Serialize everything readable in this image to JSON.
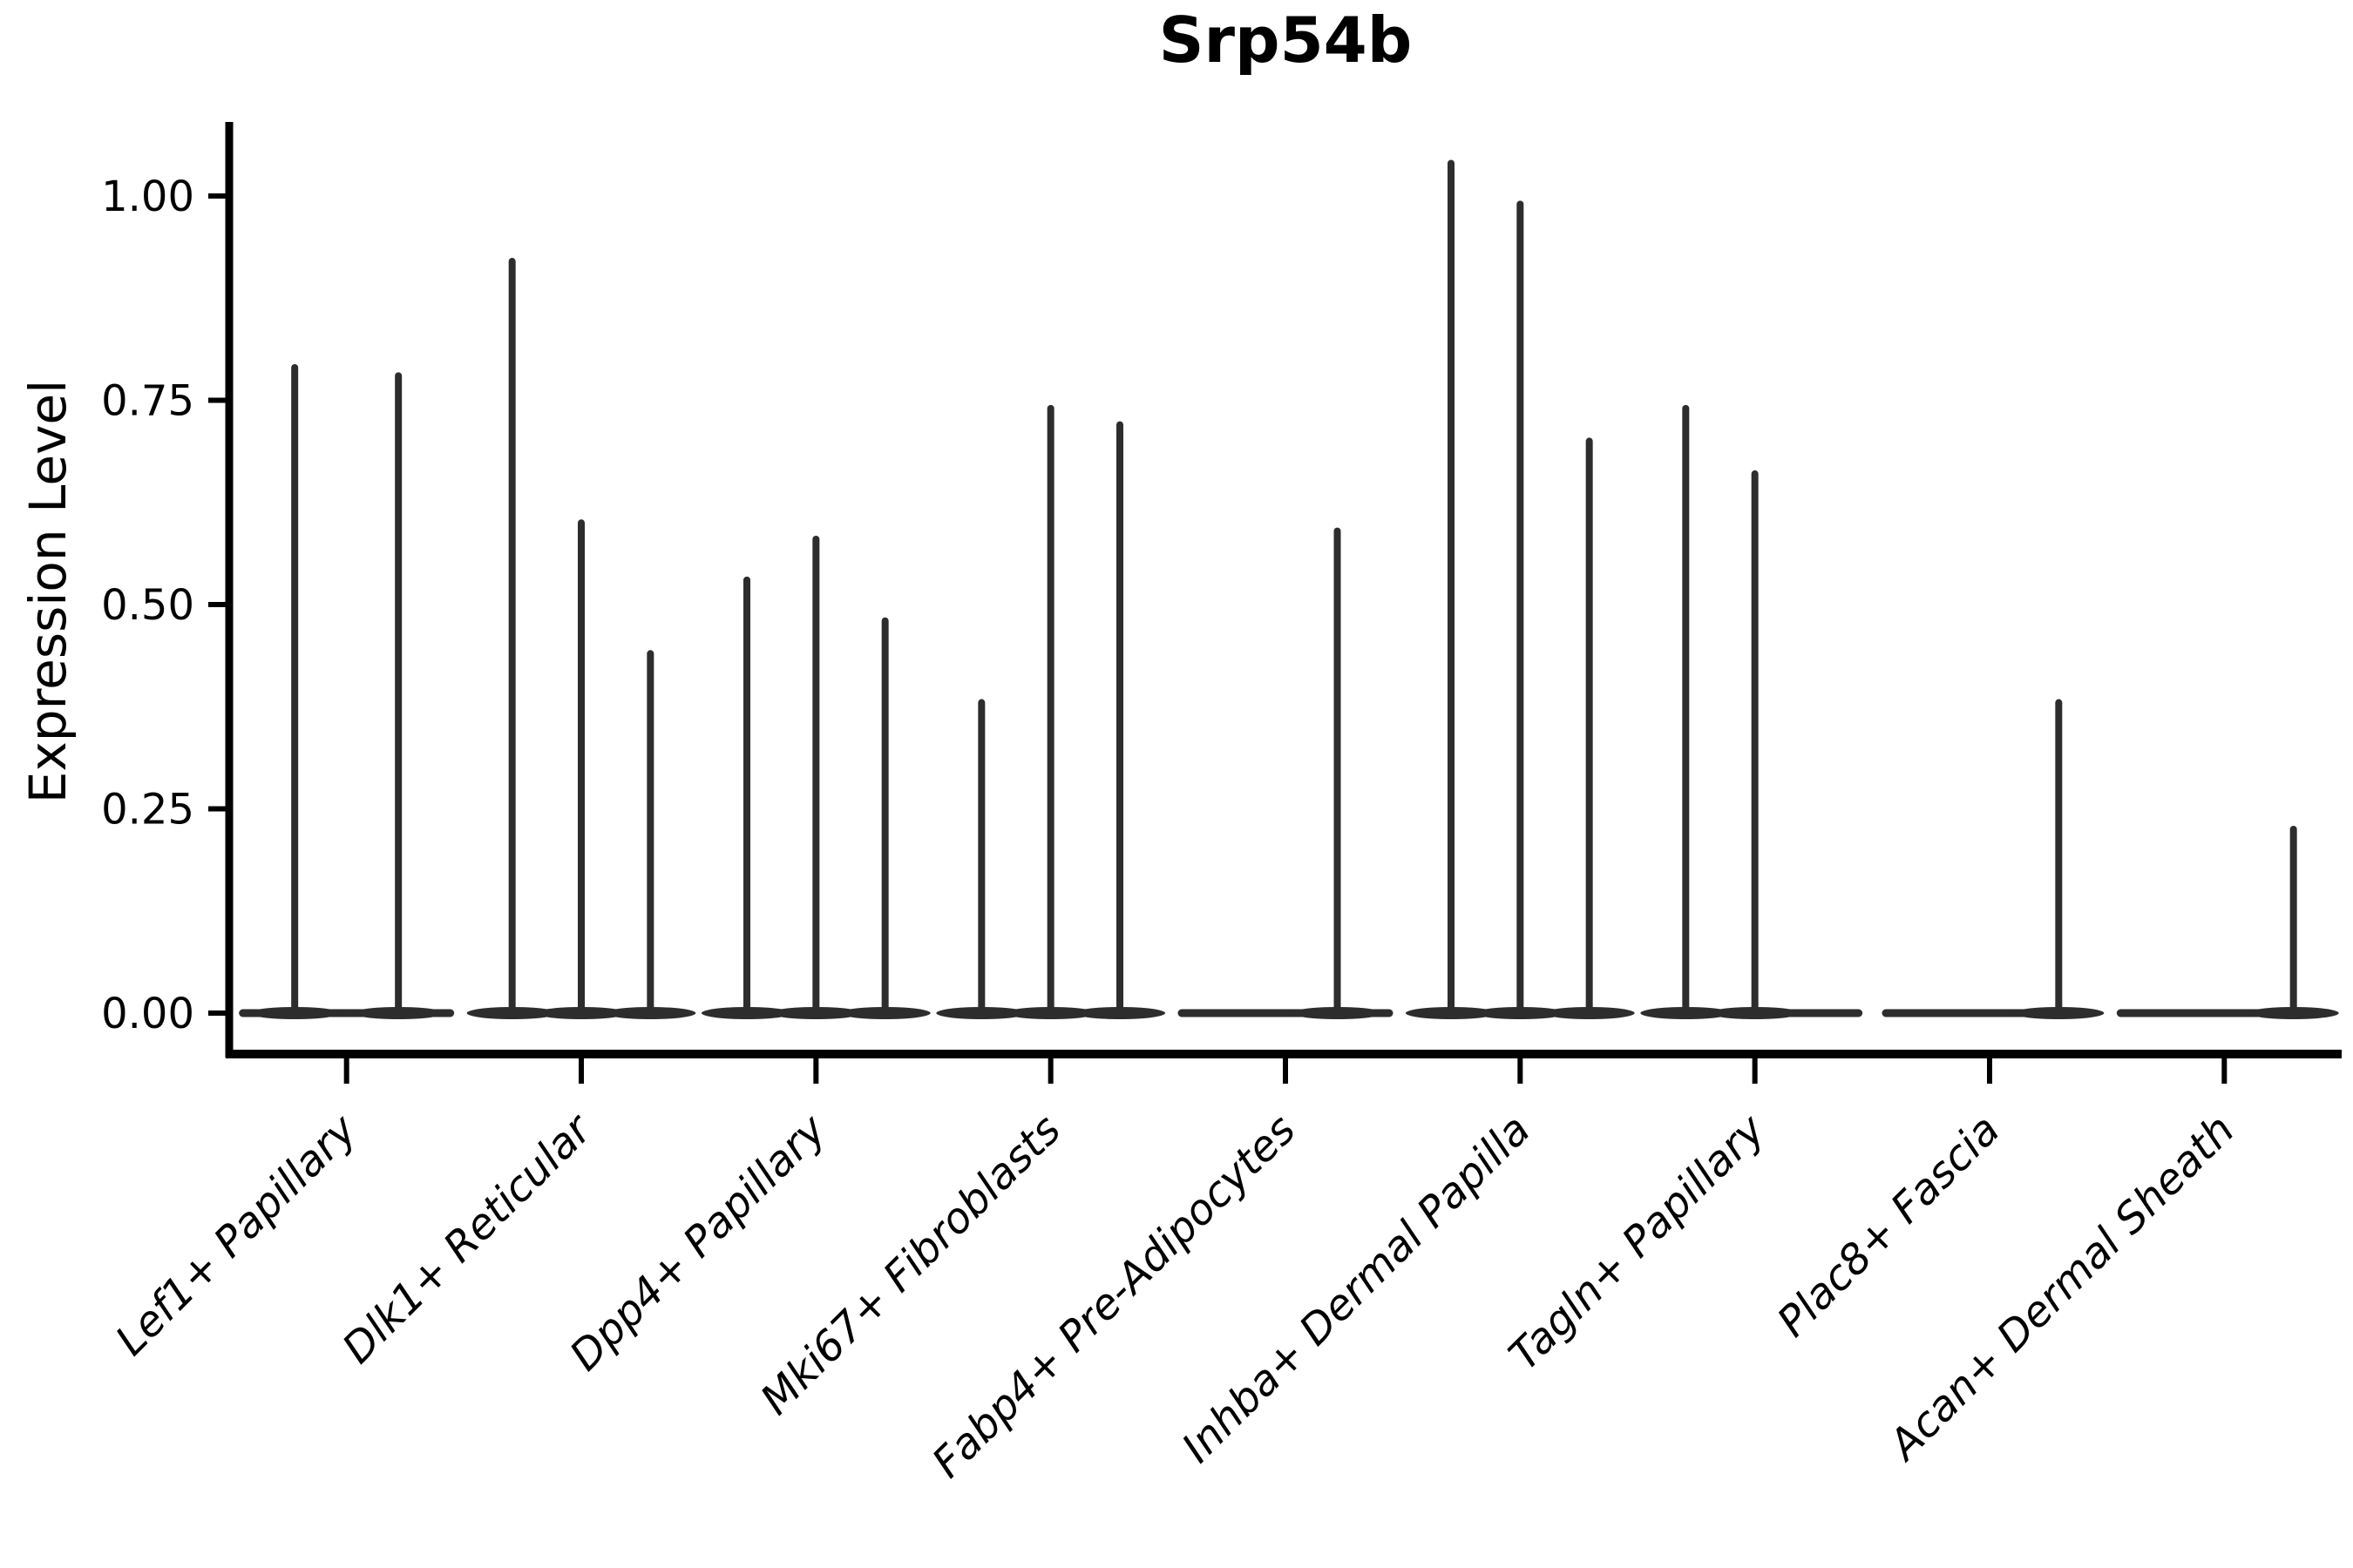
{
  "chart_data": {
    "type": "violin",
    "title": "Srp54b",
    "ylabel": "Expression Level",
    "xlabel": "",
    "ylim": [
      0,
      1.08
    ],
    "grid": false,
    "legend": "none",
    "yticks": [
      {
        "value": 0.0,
        "label": "0.00"
      },
      {
        "value": 0.25,
        "label": "0.25"
      },
      {
        "value": 0.5,
        "label": "0.50"
      },
      {
        "value": 0.75,
        "label": "0.75"
      },
      {
        "value": 1.0,
        "label": "1.00"
      }
    ],
    "note": "Sparse single-cell expression violins: each category shows thin spike violins; value = max expression height of each violin, null = fully flat (all-zero) violin",
    "categories": [
      {
        "label": "Lef1+ Papillary",
        "violins": [
          0.79,
          0.78
        ]
      },
      {
        "label": "Dlk1+ Reticular",
        "violins": [
          0.92,
          0.6,
          0.44
        ]
      },
      {
        "label": "Dpp4+ Papillary",
        "violins": [
          0.53,
          0.58,
          0.48
        ]
      },
      {
        "label": "Mki67+ Fibroblasts",
        "violins": [
          0.38,
          0.74,
          0.72
        ]
      },
      {
        "label": "Fabp4+ Pre-Adipocytes",
        "violins": [
          null,
          0.59
        ]
      },
      {
        "label": "Inhba+ Dermal Papilla",
        "violins": [
          1.04,
          0.99,
          0.7
        ]
      },
      {
        "label": "Tagln+ Papillary",
        "violins": [
          0.74,
          0.66,
          null
        ]
      },
      {
        "label": "Plac8+ Fascia",
        "violins": [
          null,
          null,
          0.38
        ]
      },
      {
        "label": "Acan+ Dermal Sheath",
        "violins": [
          null,
          null,
          0.225
        ]
      }
    ],
    "colors": {
      "violin": "#2d2d2d",
      "axis": "#000000",
      "text": "#000000",
      "background": "#ffffff"
    }
  }
}
